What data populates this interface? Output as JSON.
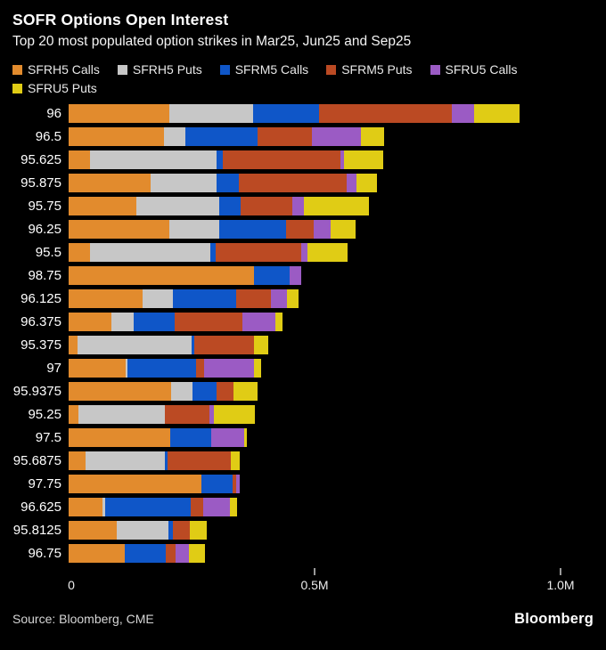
{
  "header": {
    "title": "SOFR Options Open Interest",
    "subtitle": "Top 20 most populated option strikes in Mar25, Jun25 and Sep25"
  },
  "colors": {
    "background": "#000000",
    "sfrh5_calls": "#E28B2D",
    "sfrh5_puts": "#C7C7C7",
    "sfrm5_calls": "#0F56C8",
    "sfrm5_puts": "#BB4A23",
    "sfru5_calls": "#9B5BC4",
    "sfru5_puts": "#E0CC15",
    "tick": "#9A9A9A"
  },
  "legend": [
    {
      "label": "SFRH5 Calls",
      "color": "#E28B2D"
    },
    {
      "label": "SFRH5 Puts",
      "color": "#C7C7C7"
    },
    {
      "label": "SFRM5 Calls",
      "color": "#0F56C8"
    },
    {
      "label": "SFRM5 Puts",
      "color": "#BB4A23"
    },
    {
      "label": "SFRU5 Calls",
      "color": "#9B5BC4"
    },
    {
      "label": "SFRU5 Puts",
      "color": "#E0CC15"
    }
  ],
  "chart_data": {
    "type": "bar",
    "orientation": "horizontal",
    "stacked": true,
    "title": "SOFR Options Open Interest",
    "subtitle": "Top 20 most populated option strikes in Mar25, Jun25 and Sep25",
    "unit": "millions of contracts",
    "xlabel": "",
    "ylabel": "option strike",
    "xlim": [
      0,
      1.0
    ],
    "grid": false,
    "legend_position": "top",
    "categories": [
      "96",
      "96.5",
      "95.625",
      "95.875",
      "95.75",
      "96.25",
      "95.5",
      "98.75",
      "96.125",
      "96.375",
      "95.375",
      "97",
      "95.9375",
      "95.25",
      "97.5",
      "95.6875",
      "97.75",
      "96.625",
      "95.8125",
      "96.75"
    ],
    "series": [
      {
        "name": "SFRH5 Calls",
        "color": "#E28B2D",
        "values": [
          0.204,
          0.194,
          0.043,
          0.167,
          0.137,
          0.204,
          0.044,
          0.377,
          0.151,
          0.087,
          0.018,
          0.115,
          0.208,
          0.019,
          0.207,
          0.034,
          0.27,
          0.068,
          0.098,
          0.114
        ]
      },
      {
        "name": "SFRH5 Puts",
        "color": "#C7C7C7",
        "values": [
          0.171,
          0.043,
          0.257,
          0.134,
          0.169,
          0.102,
          0.245,
          0,
          0.061,
          0.045,
          0.232,
          0.004,
          0.044,
          0.177,
          0,
          0.162,
          0,
          0.007,
          0.105,
          0
        ]
      },
      {
        "name": "SFRM5 Calls",
        "color": "#0F56C8",
        "values": [
          0.134,
          0.148,
          0.013,
          0.045,
          0.043,
          0.136,
          0.01,
          0.072,
          0.128,
          0.083,
          0.006,
          0.14,
          0.048,
          0,
          0.082,
          0.005,
          0.063,
          0.174,
          0.009,
          0.083
        ]
      },
      {
        "name": "SFRM5 Puts",
        "color": "#BB4A23",
        "values": [
          0.27,
          0.109,
          0.24,
          0.219,
          0.105,
          0.056,
          0.174,
          0,
          0.071,
          0.139,
          0.121,
          0.017,
          0.036,
          0.091,
          0,
          0.128,
          0.007,
          0.025,
          0.034,
          0.021
        ]
      },
      {
        "name": "SFRU5 Calls",
        "color": "#9B5BC4",
        "values": [
          0.045,
          0.1,
          0.007,
          0.02,
          0.025,
          0.034,
          0.012,
          0.024,
          0.032,
          0.067,
          0,
          0.101,
          0,
          0.008,
          0.068,
          0,
          0.007,
          0.054,
          0,
          0.027
        ]
      },
      {
        "name": "SFRU5 Puts",
        "color": "#E0CC15",
        "values": [
          0.092,
          0.047,
          0.08,
          0.042,
          0.132,
          0.051,
          0.082,
          0,
          0.025,
          0.014,
          0.028,
          0.015,
          0.049,
          0.083,
          0.005,
          0.018,
          0,
          0.014,
          0.034,
          0.032
        ]
      }
    ],
    "x_axis": {
      "labels": [
        {
          "text": "0",
          "value": 0
        },
        {
          "text": "0.5M",
          "value": 0.5
        },
        {
          "text": "1.0M",
          "value": 1.0
        }
      ],
      "tickmarks": [
        0.5,
        1.0
      ]
    }
  },
  "footer": {
    "source": "Source: Bloomberg, CME",
    "logo": "Bloomberg"
  }
}
